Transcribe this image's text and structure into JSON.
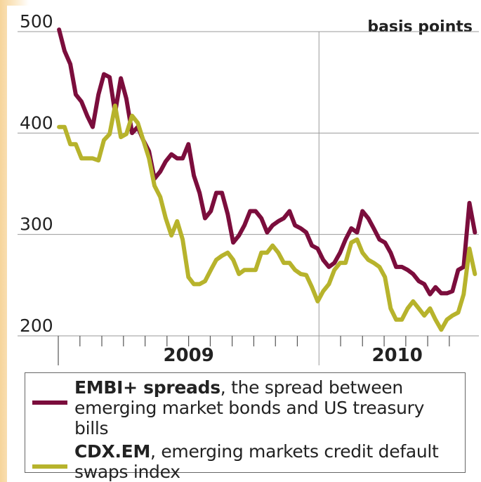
{
  "chart_data": {
    "type": "line",
    "y_axis_label": "basis points",
    "x": [
      2009.003,
      2009.024,
      2009.046,
      2009.067,
      2009.089,
      2009.111,
      2009.132,
      2009.154,
      2009.175,
      2009.197,
      2009.218,
      2009.24,
      2009.261,
      2009.283,
      2009.305,
      2009.326,
      2009.348,
      2009.369,
      2009.391,
      2009.412,
      2009.434,
      2009.456,
      2009.477,
      2009.499,
      2009.52,
      2009.542,
      2009.563,
      2009.585,
      2009.606,
      2009.628,
      2009.65,
      2009.671,
      2009.693,
      2009.714,
      2009.736,
      2009.757,
      2009.779,
      2009.801,
      2009.822,
      2009.844,
      2009.865,
      2009.887,
      2009.908,
      2009.93,
      2009.951,
      2009.973,
      2009.995,
      2010.016,
      2010.038,
      2010.059,
      2010.081,
      2010.102,
      2010.124,
      2010.146,
      2010.167,
      2010.189,
      2010.21,
      2010.232,
      2010.253,
      2010.275,
      2010.296,
      2010.318,
      2010.34,
      2010.361,
      2010.383,
      2010.404,
      2010.426,
      2010.447,
      2010.469,
      2010.491,
      2010.512,
      2010.534,
      2010.555,
      2010.577,
      2010.598
    ],
    "series": [
      {
        "name": "EMBI+ spreads",
        "description": ", the spread between emerging market bonds and US treasury bills",
        "color": "#7b0d3c",
        "values": [
          502,
          481,
          468,
          438,
          431,
          417,
          406,
          438,
          458,
          455,
          420,
          454,
          434,
          400,
          406,
          393,
          382,
          355,
          362,
          372,
          379,
          375,
          375,
          389,
          358,
          341,
          316,
          323,
          341,
          341,
          320,
          292,
          299,
          309,
          323,
          323,
          316,
          302,
          309,
          313,
          316,
          323,
          309,
          306,
          302,
          289,
          286,
          275,
          268,
          272,
          282,
          295,
          306,
          302,
          323,
          316,
          306,
          295,
          292,
          282,
          268,
          268,
          265,
          261,
          254,
          251,
          241,
          248,
          242,
          242,
          244,
          265,
          268,
          331,
          302
        ]
      },
      {
        "name": "CDX.EM",
        "description": ", emerging markets credit default swaps index",
        "color": "#b7b32c",
        "values": [
          406,
          406,
          389,
          389,
          375,
          375,
          375,
          373,
          393,
          399,
          427,
          396,
          399,
          417,
          410,
          393,
          375,
          348,
          337,
          316,
          299,
          313,
          295,
          258,
          251,
          251,
          254,
          265,
          275,
          279,
          282,
          275,
          261,
          265,
          265,
          265,
          282,
          282,
          289,
          282,
          272,
          272,
          265,
          261,
          260,
          248,
          234,
          244,
          251,
          265,
          272,
          272,
          292,
          295,
          282,
          275,
          272,
          268,
          258,
          227,
          216,
          216,
          227,
          234,
          227,
          220,
          227,
          216,
          206,
          216,
          220,
          223,
          241,
          286,
          261
        ]
      }
    ],
    "xlim": [
      2009,
      2010.6
    ],
    "xticks": [
      2009,
      2009.083,
      2009.167,
      2009.25,
      2009.333,
      2009.417,
      2009.5,
      2009.583,
      2009.667,
      2009.75,
      2009.833,
      2009.917,
      2010,
      2010.083,
      2010.167,
      2010.25,
      2010.333,
      2010.417,
      2010.5
    ],
    "year_labels": [
      {
        "value": 2009.5,
        "label": "2009"
      },
      {
        "value": 2010.3,
        "label": "2010"
      }
    ],
    "ylim": [
      200,
      500
    ],
    "yticks": [
      200,
      300,
      400,
      500
    ],
    "grid": true
  }
}
